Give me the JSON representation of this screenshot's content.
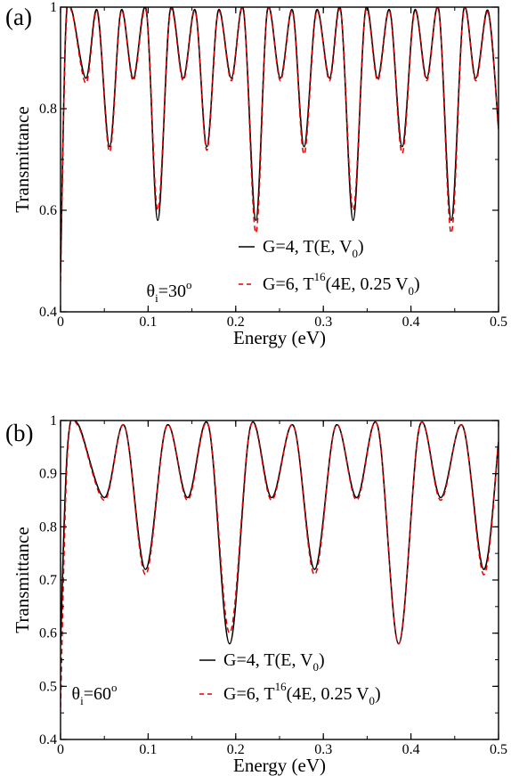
{
  "chart_data": [
    {
      "panel_label": "(a)",
      "type": "line",
      "xlabel": "Energy (eV)",
      "ylabel": "Transmittance",
      "xlim": [
        0,
        0.5
      ],
      "ylim": [
        0.4,
        1.0
      ],
      "xticks": [
        0,
        0.1,
        0.2,
        0.3,
        0.4,
        0.5
      ],
      "xtick_labels": [
        "0",
        "0.1",
        "0.2",
        "0.3",
        "0.4",
        "0.5"
      ],
      "yticks": [
        0.4,
        0.6,
        0.8,
        1.0
      ],
      "ytick_labels": [
        "0.4",
        "0.6",
        "0.8",
        "1"
      ],
      "annotation": {
        "text": "θ",
        "sub": "i",
        "text2": "=30",
        "sup": "o"
      },
      "legend": {
        "placement": "lower-right",
        "entries": [
          {
            "line": "solid",
            "text": "G=4, T(E, V",
            "sub": "0",
            "after": ")"
          },
          {
            "line": "dashed",
            "text": "G=6, T",
            "sup": "16",
            "text2": "(4E, 0.25 V",
            "sub": "0",
            "after": ")"
          }
        ]
      },
      "series": [
        {
          "name": "G=4, T(E, V0)",
          "color": "#000000",
          "dash": "solid",
          "x": [
            0.0,
            0.006,
            0.013,
            0.029,
            0.042,
            0.056,
            0.069,
            0.083,
            0.098,
            0.111,
            0.125,
            0.14,
            0.154,
            0.167,
            0.18,
            0.195,
            0.209,
            0.223,
            0.236,
            0.251,
            0.265,
            0.278,
            0.292,
            0.307,
            0.32,
            0.334,
            0.348,
            0.362,
            0.376,
            0.39,
            0.404,
            0.418,
            0.432,
            0.446,
            0.46,
            0.474,
            0.488,
            0.5
          ],
          "y": [
            0.48,
            0.96,
            0.993,
            0.86,
            0.993,
            0.725,
            0.993,
            0.86,
            0.993,
            0.58,
            0.993,
            0.86,
            0.993,
            0.725,
            0.993,
            0.86,
            0.993,
            0.58,
            0.993,
            0.86,
            0.993,
            0.725,
            0.993,
            0.86,
            0.993,
            0.58,
            0.993,
            0.86,
            0.993,
            0.725,
            0.993,
            0.86,
            0.993,
            0.58,
            0.993,
            0.86,
            0.993,
            0.76
          ]
        },
        {
          "name": "G=6, T16(4E, 0.25 V0)",
          "color": "#e00000",
          "dash": "dashed",
          "x": [
            0.0,
            0.006,
            0.013,
            0.029,
            0.042,
            0.056,
            0.069,
            0.083,
            0.098,
            0.111,
            0.125,
            0.14,
            0.154,
            0.167,
            0.18,
            0.195,
            0.209,
            0.223,
            0.236,
            0.251,
            0.265,
            0.278,
            0.292,
            0.307,
            0.32,
            0.334,
            0.348,
            0.362,
            0.376,
            0.39,
            0.404,
            0.418,
            0.432,
            0.446,
            0.46,
            0.474,
            0.488,
            0.5
          ],
          "y": [
            0.46,
            0.95,
            0.99,
            0.85,
            0.99,
            0.715,
            0.99,
            0.855,
            0.99,
            0.6,
            0.99,
            0.855,
            0.99,
            0.718,
            0.99,
            0.855,
            0.99,
            0.555,
            0.99,
            0.855,
            0.99,
            0.71,
            0.99,
            0.855,
            0.99,
            0.6,
            0.99,
            0.855,
            0.99,
            0.712,
            0.99,
            0.855,
            0.99,
            0.555,
            0.99,
            0.855,
            0.99,
            0.76
          ]
        }
      ]
    },
    {
      "panel_label": "(b)",
      "type": "line",
      "xlabel": "Energy (eV)",
      "ylabel": "Transmittance",
      "xlim": [
        0,
        0.5
      ],
      "ylim": [
        0.4,
        1.0
      ],
      "xticks": [
        0,
        0.1,
        0.2,
        0.3,
        0.4,
        0.5
      ],
      "xtick_labels": [
        "0",
        "0.1",
        "0.2",
        "0.3",
        "0.4",
        "0.5"
      ],
      "yticks": [
        0.4,
        0.5,
        0.6,
        0.7,
        0.8,
        0.9,
        1.0
      ],
      "ytick_labels": [
        "0.4",
        "0.5",
        "0.6",
        "0.7",
        "0.8",
        "0.9",
        "1"
      ],
      "annotation": {
        "text": "θ",
        "sub": "i",
        "text2": "=60",
        "sup": "o"
      },
      "legend": {
        "placement": "lower-right",
        "entries": [
          {
            "line": "solid",
            "text": "G=4, T(E, V",
            "sub": "0",
            "after": ")"
          },
          {
            "line": "dashed",
            "text": "G=6, T",
            "sup": "16",
            "text2": "(4E, 0.25 V",
            "sub": "0",
            "after": ")"
          }
        ]
      },
      "series": [
        {
          "name": "G=4, T(E, V0)",
          "color": "#000000",
          "dash": "solid",
          "x": [
            0.0,
            0.008,
            0.02,
            0.05,
            0.073,
            0.097,
            0.121,
            0.145,
            0.169,
            0.193,
            0.217,
            0.241,
            0.266,
            0.29,
            0.314,
            0.338,
            0.362,
            0.386,
            0.41,
            0.434,
            0.459,
            0.483,
            0.5
          ],
          "y": [
            0.58,
            0.95,
            0.993,
            0.855,
            0.99,
            0.72,
            0.99,
            0.855,
            0.99,
            0.58,
            0.99,
            0.855,
            0.99,
            0.72,
            0.99,
            0.855,
            0.99,
            0.58,
            0.99,
            0.855,
            0.99,
            0.72,
            0.96
          ]
        },
        {
          "name": "G=6, T16(4E, 0.25 V0)",
          "color": "#e00000",
          "dash": "dashed",
          "x": [
            0.0,
            0.008,
            0.02,
            0.05,
            0.073,
            0.097,
            0.121,
            0.145,
            0.169,
            0.193,
            0.217,
            0.241,
            0.266,
            0.29,
            0.314,
            0.338,
            0.362,
            0.386,
            0.41,
            0.434,
            0.459,
            0.483,
            0.5
          ],
          "y": [
            0.46,
            0.94,
            0.99,
            0.85,
            0.99,
            0.71,
            0.99,
            0.85,
            0.99,
            0.6,
            0.99,
            0.85,
            0.99,
            0.71,
            0.99,
            0.85,
            0.99,
            0.58,
            0.99,
            0.85,
            0.99,
            0.71,
            0.96
          ]
        }
      ]
    }
  ]
}
